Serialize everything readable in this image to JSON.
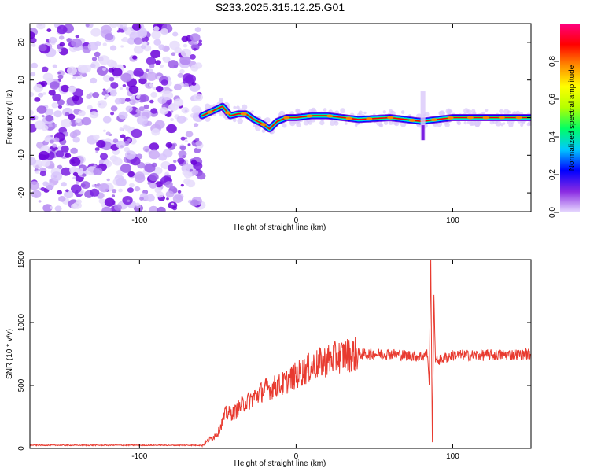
{
  "title": "S233.2025.315.12.25.G01",
  "chart_data": [
    {
      "type": "heatmap",
      "panel": "spectrogram",
      "xlabel": "Height of straight line (km)",
      "ylabel": "Frequency (Hz)",
      "xlim": [
        -170,
        150
      ],
      "ylim": [
        -25,
        25
      ],
      "xticks": [
        -100,
        0,
        100
      ],
      "xtick_labels": [
        "-100",
        "0",
        "100"
      ],
      "yticks": [
        -20,
        -10,
        0,
        10,
        20
      ],
      "ytick_labels": [
        "-20",
        "-10",
        "0",
        "10",
        "20"
      ],
      "noise_region_x": [
        -170,
        -60
      ],
      "signal_line": {
        "x": [
          -60,
          -52,
          -47,
          -42,
          -37,
          -32,
          -27,
          -22,
          -17,
          -12,
          -6,
          0,
          10,
          20,
          40,
          60,
          80,
          100,
          150
        ],
        "y": [
          0.5,
          2,
          3,
          0.5,
          1,
          1,
          -0.5,
          -1.5,
          -3,
          -1,
          0,
          0,
          0.5,
          0.5,
          -0.5,
          0,
          -1,
          0,
          0
        ]
      },
      "artifact_x": 81,
      "colorbar": {
        "label": "Normalized spectral amplitude",
        "range": [
          0,
          1
        ],
        "ticks": [
          0.0,
          0.2,
          0.4,
          0.6,
          0.8
        ],
        "tick_labels": [
          "0.0",
          "0.2",
          "0.4",
          "0.6",
          "0.8"
        ],
        "colormap": [
          "#e8dcff",
          "#8a2be2",
          "#0000ff",
          "#00c8ff",
          "#00ff64",
          "#b4ff00",
          "#ffff00",
          "#ff8c00",
          "#ff0000",
          "#ff0080"
        ]
      }
    },
    {
      "type": "line",
      "panel": "snr",
      "xlabel": "Height of straight line (km)",
      "ylabel": "SNR (10 * v/v)",
      "xlim": [
        -170,
        150
      ],
      "ylim": [
        0,
        1500
      ],
      "xticks": [
        -100,
        0,
        100
      ],
      "xtick_labels": [
        "-100",
        "0",
        "100"
      ],
      "yticks": [
        0,
        500,
        1000,
        1500
      ],
      "ytick_labels": [
        "0",
        "500",
        "1000",
        "1500"
      ],
      "color": "#e83a2f",
      "series": [
        {
          "name": "SNR",
          "x": [
            -170,
            -130,
            -100,
            -60,
            -50,
            -45,
            -40,
            -35,
            -30,
            -20,
            -10,
            0,
            10,
            20,
            30,
            40,
            60,
            80,
            84,
            85,
            86,
            87,
            88,
            89,
            90,
            100,
            120,
            150
          ],
          "values": [
            25,
            25,
            25,
            25,
            120,
            280,
            280,
            340,
            380,
            470,
            500,
            580,
            650,
            700,
            740,
            750,
            750,
            730,
            750,
            500,
            1500,
            60,
            1200,
            700,
            700,
            740,
            740,
            750
          ]
        }
      ]
    }
  ]
}
